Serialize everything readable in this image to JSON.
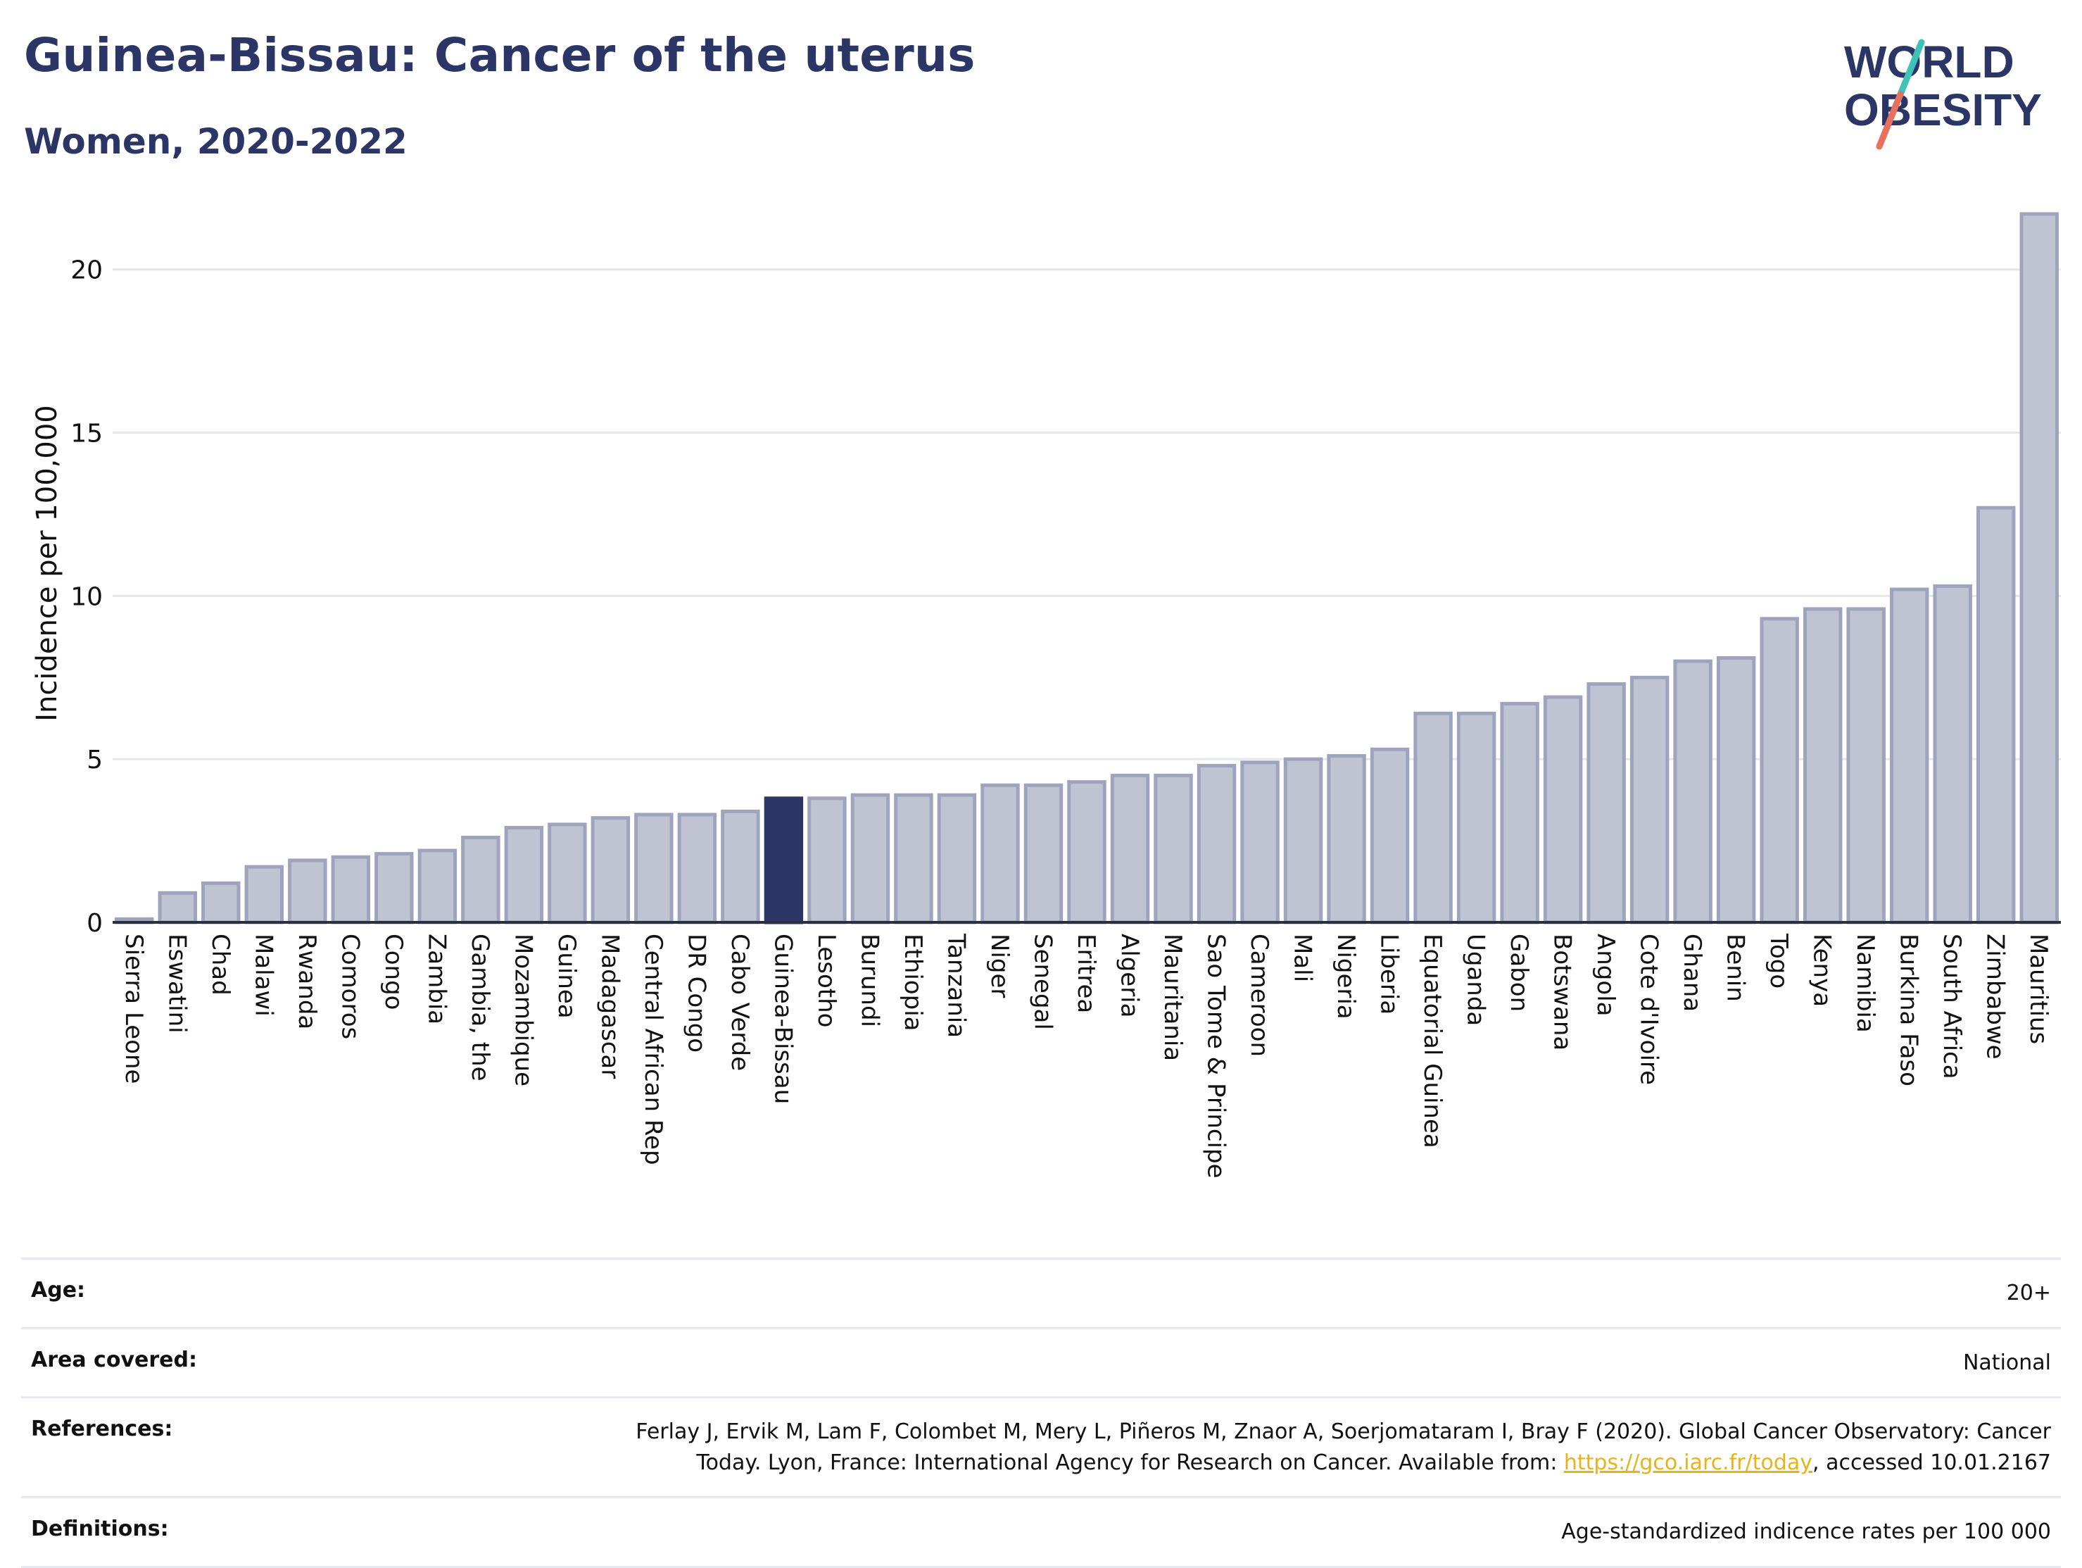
{
  "header": {
    "title": "Guinea-Bissau: Cancer of the uterus",
    "subtitle": "Women, 2020-2022"
  },
  "logo": {
    "line1": "WORLD",
    "line2": "OBESITY"
  },
  "colors": {
    "highlight": "#2b3667",
    "bar_fill": "#c0c4d2",
    "bar_stroke": "#9ea4bd",
    "logo_slash_top": "#3fc3b8",
    "logo_slash_bottom": "#e8705e",
    "link": "#e7b21a"
  },
  "chart_data": {
    "type": "bar",
    "ylabel": "Incidence per 100,000",
    "xlabel": "",
    "ylim": [
      0,
      22
    ],
    "yticks": [
      0,
      5,
      10,
      15,
      20
    ],
    "grid": true,
    "highlight": "Guinea-Bissau",
    "categories": [
      "Sierra Leone",
      "Eswatini",
      "Chad",
      "Malawi",
      "Rwanda",
      "Comoros",
      "Congo",
      "Zambia",
      "Gambia, the",
      "Mozambique",
      "Guinea",
      "Madagascar",
      "Central African Rep",
      "DR Congo",
      "Cabo Verde",
      "Guinea-Bissau",
      "Lesotho",
      "Burundi",
      "Ethiopia",
      "Tanzania",
      "Niger",
      "Senegal",
      "Eritrea",
      "Algeria",
      "Mauritania",
      "Sao Tome & Principe",
      "Cameroon",
      "Mali",
      "Nigeria",
      "Liberia",
      "Equatorial Guinea",
      "Uganda",
      "Gabon",
      "Botswana",
      "Angola",
      "Cote d'Ivoire",
      "Ghana",
      "Benin",
      "Togo",
      "Kenya",
      "Namibia",
      "Burkina Faso",
      "South Africa",
      "Zimbabwe",
      "Mauritius"
    ],
    "values": [
      0.1,
      0.9,
      1.2,
      1.7,
      1.9,
      2.0,
      2.1,
      2.2,
      2.6,
      2.9,
      3.0,
      3.2,
      3.3,
      3.3,
      3.4,
      3.8,
      3.8,
      3.9,
      3.9,
      3.9,
      4.2,
      4.2,
      4.3,
      4.5,
      4.5,
      4.8,
      4.9,
      5.0,
      5.1,
      5.3,
      6.4,
      6.4,
      6.7,
      6.9,
      7.3,
      7.5,
      8.0,
      8.1,
      9.3,
      9.6,
      9.6,
      10.2,
      10.3,
      12.7,
      21.7
    ]
  },
  "meta": {
    "age_label": "Age:",
    "age_value": "20+",
    "area_label": "Area covered:",
    "area_value": "National",
    "ref_label": "References:",
    "ref_text_1": "Ferlay J, Ervik M, Lam F, Colombet M, Mery L, Piñeros M, Znaor A, Soerjomataram I, Bray F (2020). Global Cancer Observatory: Cancer",
    "ref_text_2": "Today. Lyon, France: International Agency for Research on Cancer. Available from: ",
    "ref_link": "https://gco.iarc.fr/today",
    "ref_text_3": ", accessed 10.01.2167",
    "def_label": "Definitions:",
    "def_value": "Age-standardized indicence rates per 100 000"
  }
}
